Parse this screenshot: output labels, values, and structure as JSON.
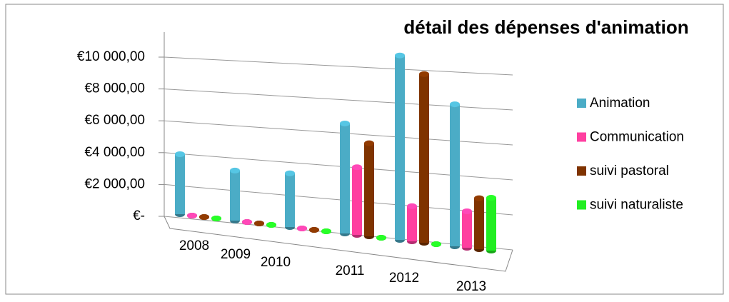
{
  "chart_data": {
    "type": "bar3d",
    "title": "détail des dépenses d'animation",
    "categories": [
      "2008",
      "2009",
      "2010",
      "2011",
      "2012",
      "2013"
    ],
    "series": [
      {
        "name": "Animation",
        "color": "#4bacc6",
        "values": [
          4000,
          3200,
          3300,
          6500,
          10500,
          7800
        ]
      },
      {
        "name": "Communication",
        "color": "#ff3fa0",
        "values": [
          0,
          0,
          0,
          4000,
          2000,
          2000
        ]
      },
      {
        "name": "suivi pastoral",
        "color": "#7f3300",
        "values": [
          0,
          0,
          0,
          5500,
          9600,
          2800
        ]
      },
      {
        "name": "suivi naturaliste",
        "color": "#22ee22",
        "values": [
          0,
          0,
          0,
          0,
          0,
          2900
        ]
      }
    ],
    "ylim": [
      0,
      10000
    ],
    "yticks": [
      {
        "value": 0,
        "label": "€-"
      },
      {
        "value": 2000,
        "label": "€2 000,00"
      },
      {
        "value": 4000,
        "label": "€4 000,00"
      },
      {
        "value": 6000,
        "label": "€6 000,00"
      },
      {
        "value": 8000,
        "label": "€8 000,00"
      },
      {
        "value": 10000,
        "label": "€10 000,00"
      }
    ],
    "grid": true,
    "legend": "right"
  }
}
